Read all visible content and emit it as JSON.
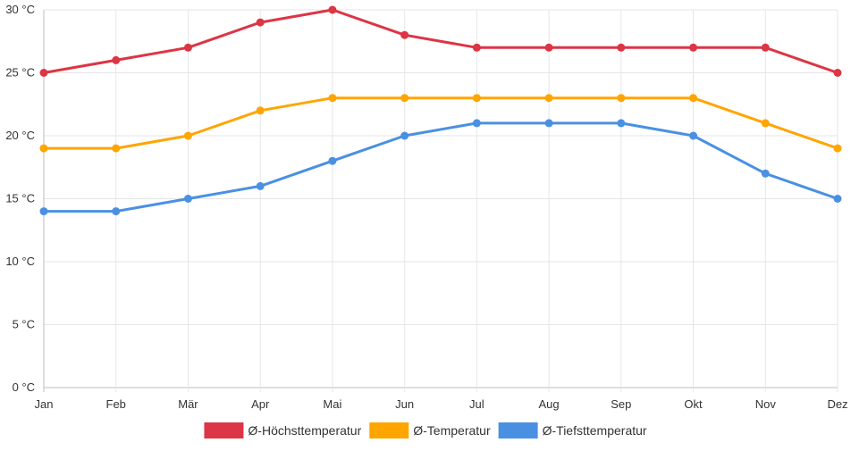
{
  "chart_data": {
    "type": "line",
    "title": "",
    "xlabel": "",
    "ylabel": "",
    "categories": [
      "Jan",
      "Feb",
      "Mär",
      "Apr",
      "Mai",
      "Jun",
      "Jul",
      "Aug",
      "Sep",
      "Okt",
      "Nov",
      "Dez"
    ],
    "ylim": [
      0,
      30
    ],
    "yticks": [
      0,
      5,
      10,
      15,
      20,
      25,
      30
    ],
    "ytick_labels": [
      "0 °C",
      "5 °C",
      "10 °C",
      "15 °C",
      "20 °C",
      "25 °C",
      "30 °C"
    ],
    "grid": true,
    "legend_position": "bottom",
    "series": [
      {
        "name": "Ø-Höchsttemperatur",
        "color": "#dc3545",
        "values": [
          25,
          26,
          27,
          29,
          30,
          28,
          27,
          27,
          27,
          27,
          27,
          25
        ]
      },
      {
        "name": "Ø-Temperatur",
        "color": "#ffa500",
        "values": [
          19,
          19,
          20,
          22,
          23,
          23,
          23,
          23,
          23,
          23,
          21,
          19
        ]
      },
      {
        "name": "Ø-Tiefsttemperatur",
        "color": "#4a90e2",
        "values": [
          14,
          14,
          15,
          16,
          18,
          20,
          21,
          21,
          21,
          20,
          17,
          15
        ]
      }
    ]
  }
}
